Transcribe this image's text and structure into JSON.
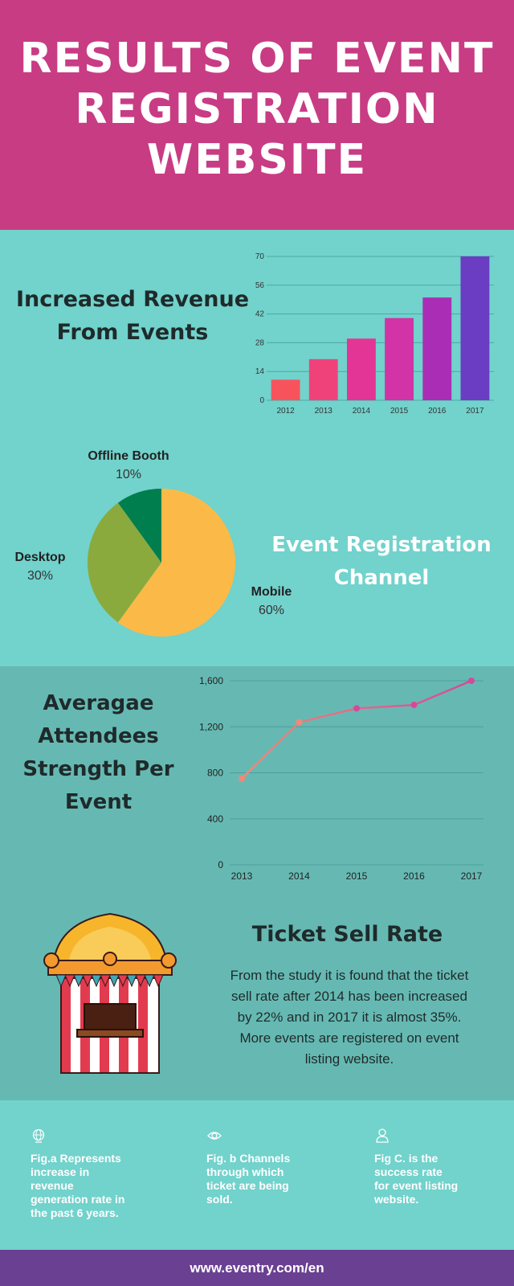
{
  "header": {
    "title": "RESULTS OF EVENT\nREGISTRATION\nWEBSITE"
  },
  "revenue": {
    "title": "Increased Revenue\nFrom Events"
  },
  "channel": {
    "title": "Event Registration\nChannel"
  },
  "attendees": {
    "title": "Averagae\nAttendees\nStrength Per\nEvent"
  },
  "ticket": {
    "title": "Ticket Sell Rate",
    "body": "From the study it is found that the ticket sell rate after 2014 has been increased by 22% and in 2017 it is almost 35%. More events are registered on event listing website."
  },
  "notes": [
    {
      "icon": "globe-icon",
      "text": "Fig.a  Represents\nincrease in\nrevenue\ngeneration rate in\nthe past 6 years."
    },
    {
      "icon": "eye-icon",
      "text": "Fig.  b Channels\nthrough which\nticket are being\nsold."
    },
    {
      "icon": "person-icon",
      "text": "Fig C. is the\nsuccess rate\nfor event listing\nwebsite."
    }
  ],
  "footer": {
    "url": "www.eventry.com/en"
  },
  "colors": {
    "header_bg": "#c83c84",
    "teal": "#72d2cc",
    "teal_dark": "#66b9b3",
    "footer_bg": "#6a4093"
  },
  "chart_data": [
    {
      "type": "bar",
      "categories": [
        "2012",
        "2013",
        "2014",
        "2015",
        "2016",
        "2017"
      ],
      "values": [
        10,
        20,
        30,
        40,
        50,
        70
      ],
      "colors": [
        "#f7535d",
        "#f0427a",
        "#e33595",
        "#d233a6",
        "#a92eb5",
        "#6a3dc2"
      ],
      "yticks": [
        "0",
        "14",
        "28",
        "42",
        "56",
        "70"
      ],
      "ylim": [
        0,
        70
      ]
    },
    {
      "type": "pie",
      "slices": [
        {
          "name": "Mobile",
          "percent": "60%",
          "value": 60,
          "color": "#fbba47"
        },
        {
          "name": "Desktop",
          "percent": "30%",
          "value": 30,
          "color": "#8aaa3e"
        },
        {
          "name": "Offline Booth",
          "percent": "10%",
          "value": 10,
          "color": "#007e4e"
        }
      ]
    },
    {
      "type": "line",
      "categories": [
        "2013",
        "2014",
        "2015",
        "2016",
        "2017"
      ],
      "values": [
        750,
        1240,
        1360,
        1390,
        1600
      ],
      "yticks": [
        "0",
        "400",
        "800",
        "1,200",
        "1,600"
      ],
      "ylim": [
        0,
        1600
      ],
      "color_start": "#f08a78",
      "color_end": "#d6489c"
    }
  ]
}
